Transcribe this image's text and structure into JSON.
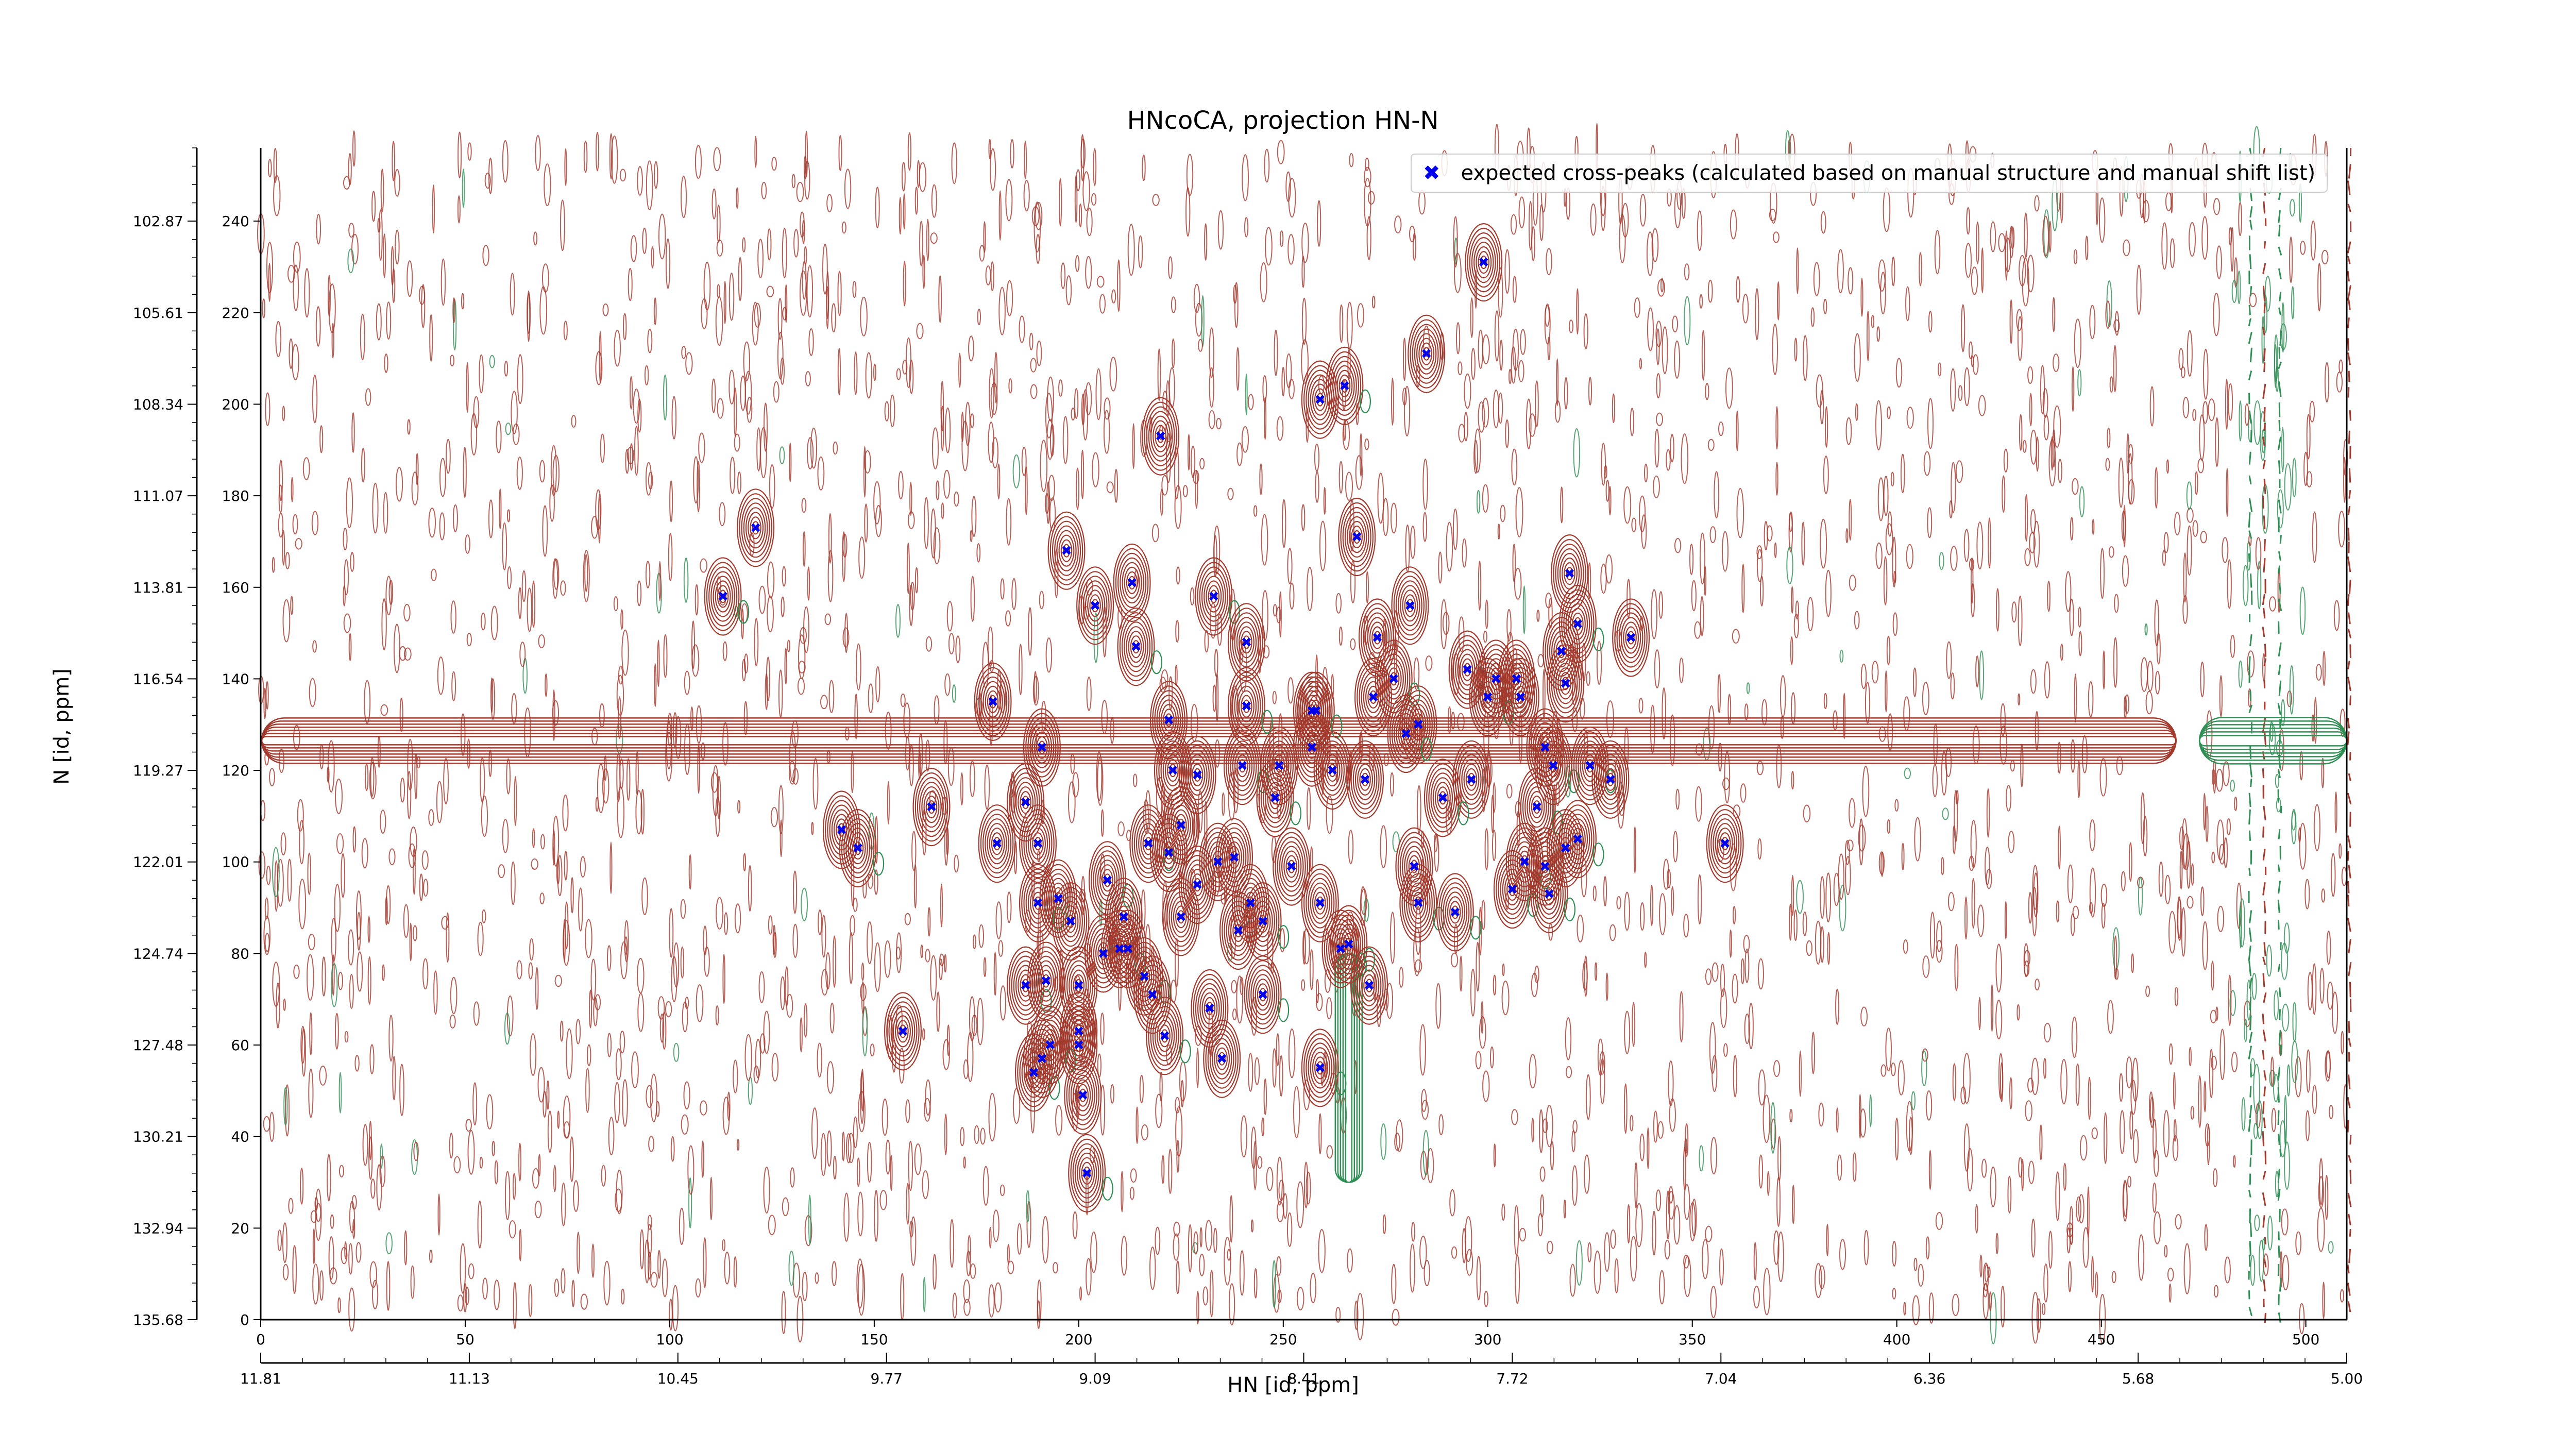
{
  "chart_data": {
    "type": "scatter",
    "title": "HNcoCA, projection HN-N",
    "xlabel": "HN [id, ppm]",
    "ylabel": "N [id, ppm]",
    "xlim": [
      0,
      510
    ],
    "ylim": [
      0,
      256
    ],
    "x_index_ticks": [
      "0",
      "50",
      "100",
      "150",
      "200",
      "250",
      "300",
      "350",
      "400",
      "450",
      "500"
    ],
    "x_ppm_ticks": [
      "11.81",
      "11.13",
      "10.45",
      "9.77",
      "9.09",
      "8.41",
      "7.72",
      "7.04",
      "6.36",
      "5.68",
      "5.00"
    ],
    "y_index_ticks": [
      "0",
      "20",
      "40",
      "60",
      "80",
      "100",
      "120",
      "140",
      "160",
      "180",
      "200",
      "220",
      "240"
    ],
    "y_ppm_ticks": [
      "135.68",
      "132.94",
      "130.21",
      "127.48",
      "124.74",
      "122.01",
      "119.27",
      "116.54",
      "113.81",
      "111.07",
      "108.34",
      "105.61",
      "102.87"
    ],
    "contour_colors": {
      "positive": "#a33a2e",
      "negative": "#2f8f55"
    },
    "grid": false,
    "legend_position": "top-right",
    "series": [
      {
        "name": "expected cross-peaks (calculated based on manual structure and manual shift list)",
        "color": "#0000ee",
        "marker": "x",
        "points": [
          [
            299,
            231
          ],
          [
            285,
            211
          ],
          [
            265,
            204
          ],
          [
            259,
            201
          ],
          [
            220,
            193
          ],
          [
            121,
            173
          ],
          [
            113,
            158
          ],
          [
            197,
            168
          ],
          [
            268,
            171
          ],
          [
            213,
            161
          ],
          [
            233,
            158
          ],
          [
            204,
            156
          ],
          [
            281,
            156
          ],
          [
            320,
            163
          ],
          [
            322,
            152
          ],
          [
            335,
            149
          ],
          [
            273,
            149
          ],
          [
            241,
            148
          ],
          [
            214,
            147
          ],
          [
            318,
            146
          ],
          [
            295,
            142
          ],
          [
            302,
            140
          ],
          [
            307,
            140
          ],
          [
            277,
            140
          ],
          [
            319,
            139
          ],
          [
            272,
            136
          ],
          [
            300,
            136
          ],
          [
            308,
            136
          ],
          [
            179,
            135
          ],
          [
            241,
            134
          ],
          [
            257,
            133
          ],
          [
            258,
            133
          ],
          [
            222,
            131
          ],
          [
            283,
            130
          ],
          [
            280,
            128
          ],
          [
            257,
            125
          ],
          [
            191,
            125
          ],
          [
            314,
            125
          ],
          [
            316,
            121
          ],
          [
            325,
            121
          ],
          [
            240,
            121
          ],
          [
            223,
            120
          ],
          [
            249,
            121
          ],
          [
            262,
            120
          ],
          [
            229,
            119
          ],
          [
            270,
            118
          ],
          [
            296,
            118
          ],
          [
            330,
            118
          ],
          [
            248,
            114
          ],
          [
            289,
            114
          ],
          [
            187,
            113
          ],
          [
            312,
            112
          ],
          [
            164,
            112
          ],
          [
            142,
            107
          ],
          [
            146,
            103
          ],
          [
            180,
            104
          ],
          [
            190,
            104
          ],
          [
            217,
            104
          ],
          [
            319,
            103
          ],
          [
            322,
            105
          ],
          [
            358,
            104
          ],
          [
            222,
            102
          ],
          [
            225,
            108
          ],
          [
            234,
            100
          ],
          [
            238,
            101
          ],
          [
            252,
            99
          ],
          [
            309,
            100
          ],
          [
            314,
            99
          ],
          [
            282,
            99
          ],
          [
            229,
            95
          ],
          [
            207,
            96
          ],
          [
            195,
            92
          ],
          [
            190,
            91
          ],
          [
            242,
            91
          ],
          [
            259,
            91
          ],
          [
            283,
            91
          ],
          [
            306,
            94
          ],
          [
            315,
            93
          ],
          [
            266,
            82
          ],
          [
            206,
            80
          ],
          [
            210,
            81
          ],
          [
            212,
            81
          ],
          [
            198,
            87
          ],
          [
            211,
            88
          ],
          [
            225,
            88
          ],
          [
            264,
            81
          ],
          [
            292,
            89
          ],
          [
            245,
            87
          ],
          [
            239,
            85
          ],
          [
            271,
            73
          ],
          [
            187,
            73
          ],
          [
            200,
            73
          ],
          [
            192,
            74
          ],
          [
            216,
            75
          ],
          [
            232,
            68
          ],
          [
            245,
            71
          ],
          [
            218,
            71
          ],
          [
            157,
            63
          ],
          [
            200,
            63
          ],
          [
            193,
            60
          ],
          [
            200,
            60
          ],
          [
            235,
            57
          ],
          [
            221,
            62
          ],
          [
            189,
            54
          ],
          [
            191,
            57
          ],
          [
            259,
            55
          ],
          [
            201,
            49
          ],
          [
            202,
            32
          ]
        ]
      }
    ]
  }
}
